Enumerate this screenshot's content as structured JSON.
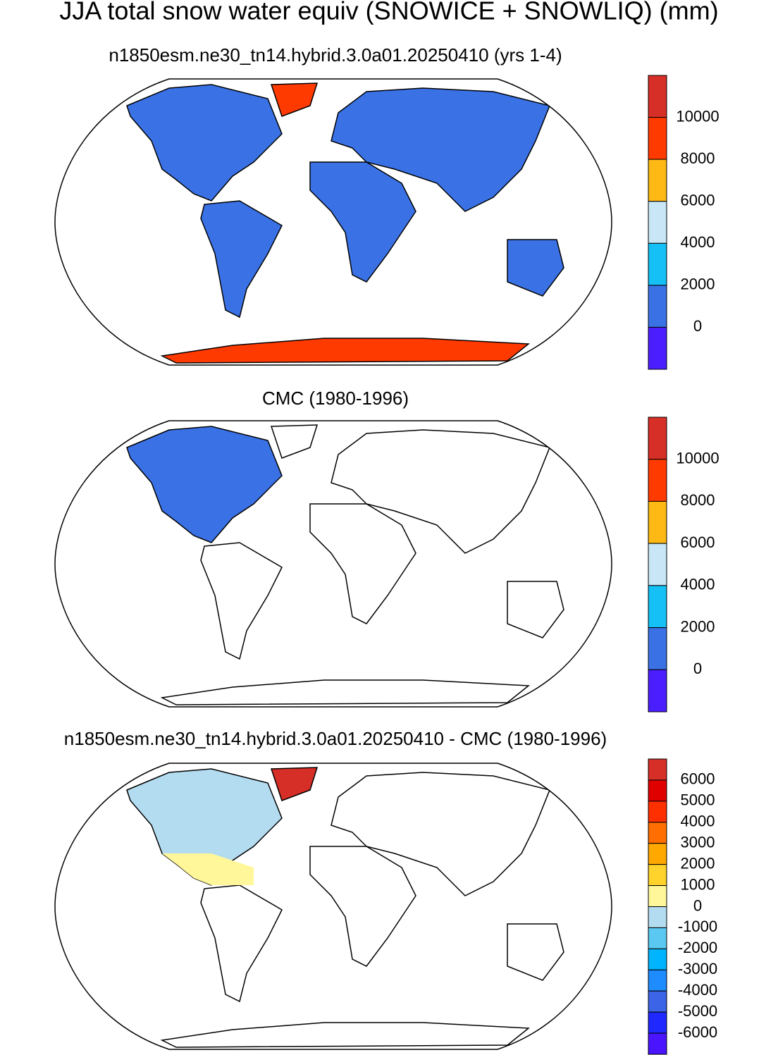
{
  "title": "JJA total snow water equiv (SNOWICE + SNOWLIQ) (mm)",
  "panels": [
    {
      "title": "n1850esm.ne30_tn14.hybrid.3.0a01.20250410 (yrs 1-4)",
      "colorbar": {
        "colors": [
          "#d62f27",
          "#ff3a00",
          "#ffb914",
          "#c8e6f5",
          "#14c0f5",
          "#3a72e6",
          "#4b1eff"
        ],
        "ticks": [
          10000,
          8000,
          6000,
          4000,
          2000,
          0
        ]
      }
    },
    {
      "title": "CMC (1980-1996)",
      "colorbar": {
        "colors": [
          "#d62f27",
          "#ff3a00",
          "#ffb914",
          "#c8e6f5",
          "#14c0f5",
          "#3a72e6",
          "#4b1eff"
        ],
        "ticks": [
          10000,
          8000,
          6000,
          4000,
          2000,
          0
        ]
      }
    },
    {
      "title": "n1850esm.ne30_tn14.hybrid.3.0a01.20250410 - CMC (1980-1996)",
      "colorbar": {
        "colors": [
          "#d62f27",
          "#e00000",
          "#ff3000",
          "#ff6e00",
          "#ffa800",
          "#ffd22c",
          "#fff79a",
          "#b4dcf0",
          "#5ac8f0",
          "#00b4ff",
          "#1e8cff",
          "#3c64e6",
          "#1e28ff",
          "#4b14ff"
        ],
        "ticks": [
          6000,
          5000,
          4000,
          3000,
          2000,
          1000,
          0,
          -1000,
          -2000,
          -3000,
          -4000,
          -5000,
          -6000
        ]
      }
    }
  ]
}
